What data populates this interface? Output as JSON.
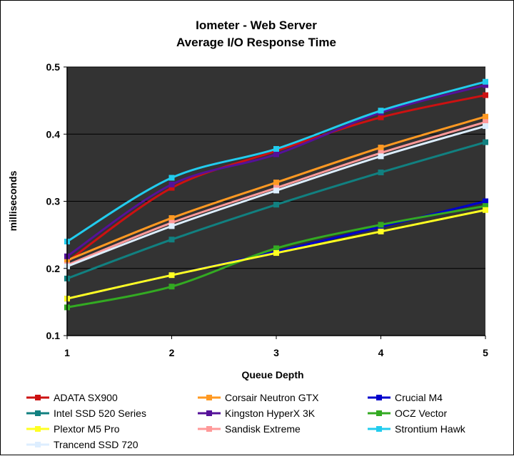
{
  "chart_data": {
    "type": "line",
    "title": "Iometer - Web Server",
    "subtitle": "Average I/O Response Time",
    "xlabel": "Queue Depth",
    "ylabel": "milliseconds",
    "x": [
      1,
      2,
      3,
      4,
      5
    ],
    "x_ticks": [
      "1",
      "2",
      "3",
      "4",
      "5"
    ],
    "ylim": [
      0.1,
      0.5
    ],
    "y_ticks": [
      "0.1",
      "0.2",
      "0.3",
      "0.4",
      "0.5"
    ],
    "plot_background": "#333333",
    "legend_position": "bottom",
    "series": [
      {
        "name": "ADATA SX900",
        "color": "#cc1111",
        "values": [
          0.21,
          0.32,
          0.375,
          0.425,
          0.458
        ]
      },
      {
        "name": "Corsair Neutron GTX",
        "color": "#ff9922",
        "values": [
          0.212,
          0.275,
          0.328,
          0.38,
          0.426
        ]
      },
      {
        "name": "Crucial M4",
        "color": "#0000cc",
        "values": [
          0.155,
          0.19,
          0.225,
          0.262,
          0.3
        ]
      },
      {
        "name": "Intel SSD 520 Series",
        "color": "#118080",
        "values": [
          0.185,
          0.243,
          0.295,
          0.343,
          0.388
        ]
      },
      {
        "name": "Kingston HyperX 3K",
        "color": "#551199",
        "values": [
          0.218,
          0.325,
          0.37,
          0.432,
          0.473
        ]
      },
      {
        "name": "OCZ Vector",
        "color": "#33aa22",
        "values": [
          0.142,
          0.173,
          0.23,
          0.265,
          0.293
        ]
      },
      {
        "name": "Plextor M5 Pro",
        "color": "#ffff22",
        "values": [
          0.155,
          0.19,
          0.223,
          0.255,
          0.287
        ]
      },
      {
        "name": "Sandisk Extreme",
        "color": "#ff9999",
        "values": [
          0.205,
          0.268,
          0.32,
          0.372,
          0.418
        ]
      },
      {
        "name": "Strontium Hawk",
        "color": "#22ccee",
        "values": [
          0.24,
          0.335,
          0.378,
          0.435,
          0.478
        ]
      },
      {
        "name": "Trancend SSD 720",
        "color": "#ddeeff",
        "values": [
          0.203,
          0.263,
          0.316,
          0.367,
          0.412
        ]
      }
    ]
  }
}
